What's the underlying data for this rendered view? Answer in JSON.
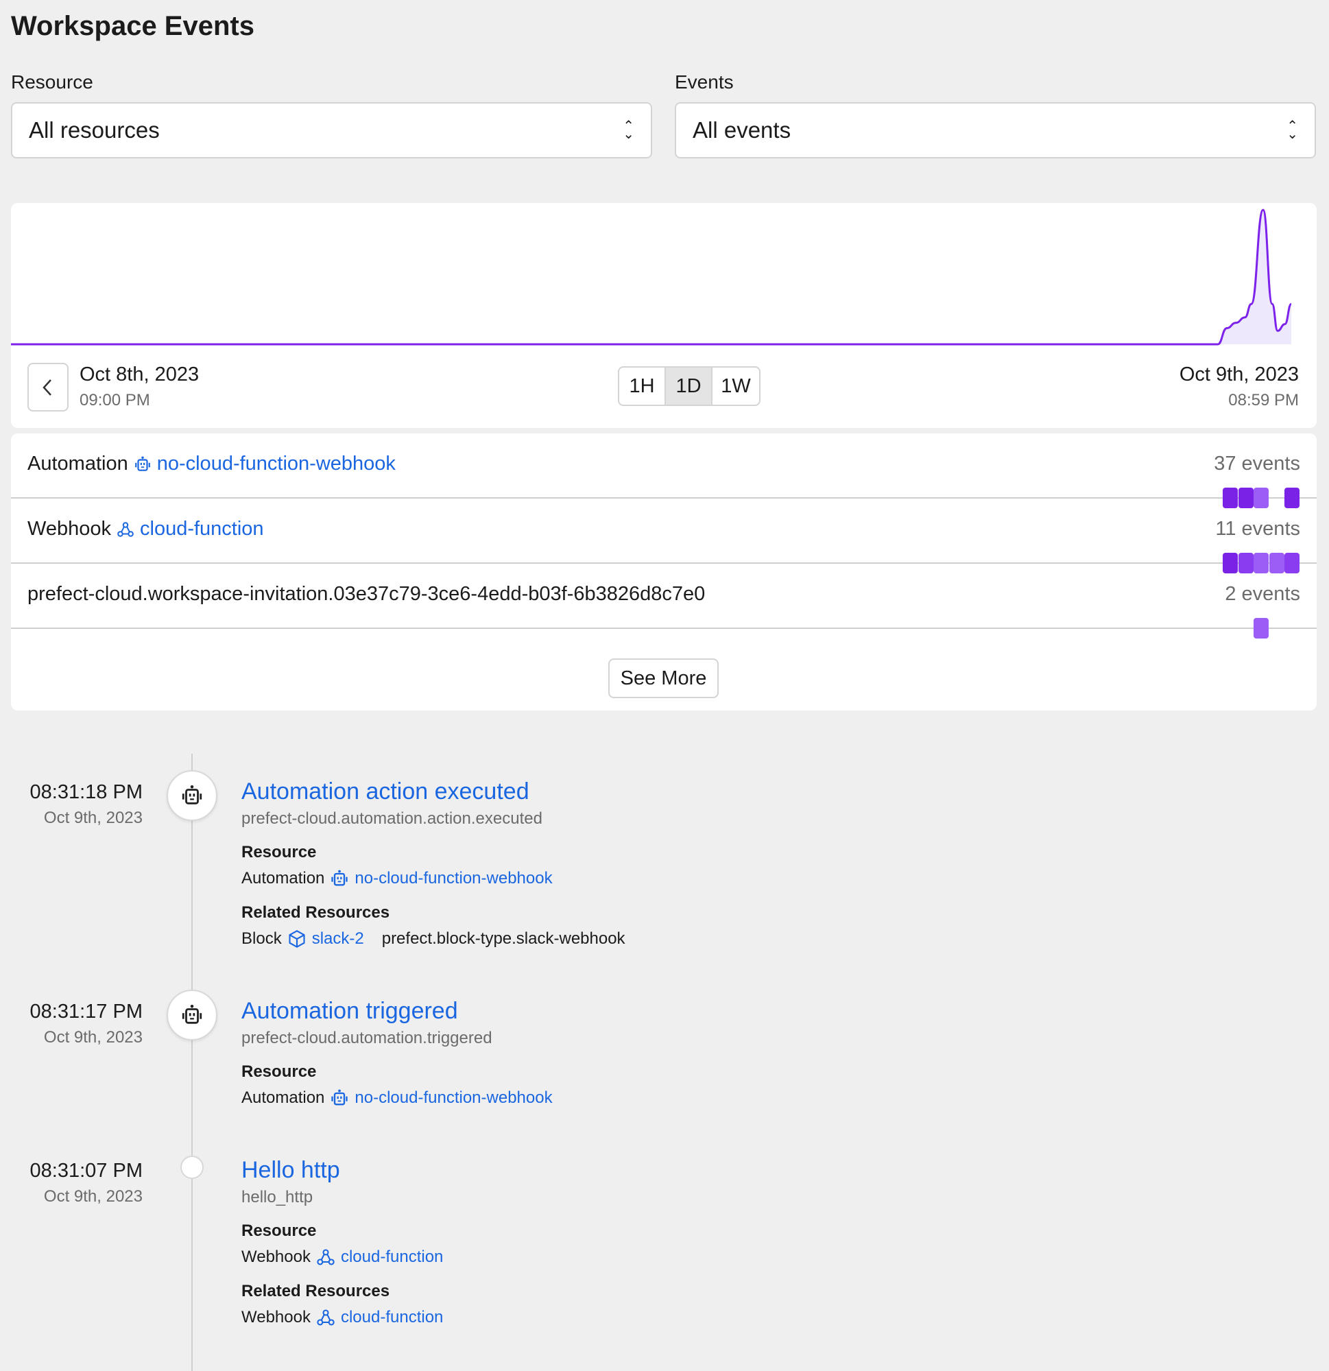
{
  "page": {
    "title": "Workspace Events"
  },
  "filters": {
    "resource_label": "Resource",
    "resource_value": "All resources",
    "events_label": "Events",
    "events_value": "All events"
  },
  "chart": {
    "start_date": "Oct 8th, 2023",
    "start_time": "09:00 PM",
    "end_date": "Oct 9th, 2023",
    "end_time": "08:59 PM",
    "ranges": [
      "1H",
      "1D",
      "1W"
    ],
    "selected_range": "1D",
    "line_color": "#7c22ea"
  },
  "chart_data": {
    "type": "area",
    "x_range": [
      "2023-10-08T21:00",
      "2023-10-09T20:59"
    ],
    "points": [
      [
        "2023-10-08T21:00",
        0
      ],
      [
        "2023-10-09T19:10",
        0
      ],
      [
        "2023-10-09T19:20",
        0.12
      ],
      [
        "2023-10-09T19:30",
        0.16
      ],
      [
        "2023-10-09T19:40",
        0.2
      ],
      [
        "2023-10-09T19:47",
        0.3
      ],
      [
        "2023-10-09T20:00",
        1
      ],
      [
        "2023-10-09T20:10",
        0.3
      ],
      [
        "2023-10-09T20:16",
        0.1
      ],
      [
        "2023-10-09T20:24",
        0.15
      ],
      [
        "2023-10-09T20:31",
        0.3
      ]
    ]
  },
  "resources": [
    {
      "type": "Automation",
      "icon": "robot-icon",
      "name": "no-cloud-function-webhook",
      "count": "37 events",
      "squares": [
        {
          "slot": 0,
          "c": "#7a22e6"
        },
        {
          "slot": 1,
          "c": "#7a22e6"
        },
        {
          "slot": 2,
          "c": "#9c5cf6"
        },
        {
          "slot": 4,
          "c": "#7a22e6"
        }
      ]
    },
    {
      "type": "Webhook",
      "icon": "webhook-icon",
      "name": "cloud-function",
      "count": "11 events",
      "squares": [
        {
          "slot": 0,
          "c": "#7a22e6"
        },
        {
          "slot": 1,
          "c": "#8a3cf0"
        },
        {
          "slot": 2,
          "c": "#9c5cf6"
        },
        {
          "slot": 3,
          "c": "#9c5cf6"
        },
        {
          "slot": 4,
          "c": "#8a3cf0"
        }
      ]
    },
    {
      "type": "",
      "icon": "",
      "name": "prefect-cloud.workspace-invitation.03e37c79-3ce6-4edd-b03f-6b3826d8c7e0",
      "count": "2 events",
      "squares": [
        {
          "slot": 2,
          "c": "#9c5cf6"
        }
      ]
    }
  ],
  "see_more": "See More",
  "events": [
    {
      "time": "08:31:18 PM",
      "date": "Oct 9th, 2023",
      "title": "Automation action executed",
      "event": "prefect-cloud.automation.action.executed",
      "resource_label": "Resource",
      "resource_type": "Automation",
      "resource_name": "no-cloud-function-webhook",
      "related_label": "Related Resources",
      "related_type": "Block",
      "related_name": "slack-2",
      "related_extra": "prefect.block-type.slack-webhook"
    },
    {
      "time": "08:31:17 PM",
      "date": "Oct 9th, 2023",
      "title": "Automation triggered",
      "event": "prefect-cloud.automation.triggered",
      "resource_label": "Resource",
      "resource_type": "Automation",
      "resource_name": "no-cloud-function-webhook"
    },
    {
      "time": "08:31:07 PM",
      "date": "Oct 9th, 2023",
      "title": "Hello http",
      "event": "hello_http",
      "resource_label": "Resource",
      "resource_type": "Webhook",
      "resource_name": "cloud-function",
      "related_label": "Related Resources",
      "related_type": "Webhook",
      "related_name": "cloud-function"
    }
  ]
}
